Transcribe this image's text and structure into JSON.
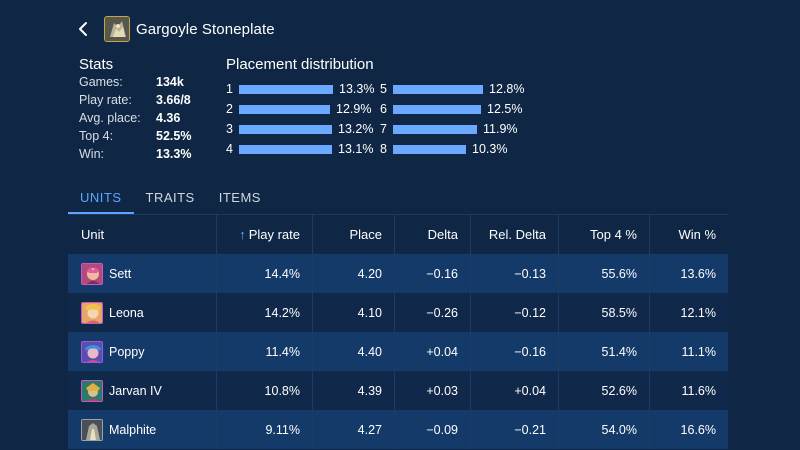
{
  "header": {
    "title": "Gargoyle Stoneplate"
  },
  "stats": {
    "title": "Stats",
    "rows": [
      {
        "label": "Games:",
        "value": "134k"
      },
      {
        "label": "Play rate:",
        "value": "3.66/8"
      },
      {
        "label": "Avg. place:",
        "value": "4.36"
      },
      {
        "label": "Top 4:",
        "value": "52.5%"
      },
      {
        "label": "Win:",
        "value": "13.3%"
      }
    ]
  },
  "placement": {
    "title": "Placement distribution",
    "items": [
      {
        "place": "1",
        "pct": "13.3%",
        "value": 13.3
      },
      {
        "place": "2",
        "pct": "12.9%",
        "value": 12.9
      },
      {
        "place": "3",
        "pct": "13.2%",
        "value": 13.2
      },
      {
        "place": "4",
        "pct": "13.1%",
        "value": 13.1
      },
      {
        "place": "5",
        "pct": "12.8%",
        "value": 12.8
      },
      {
        "place": "6",
        "pct": "12.5%",
        "value": 12.5
      },
      {
        "place": "7",
        "pct": "11.9%",
        "value": 11.9
      },
      {
        "place": "8",
        "pct": "10.3%",
        "value": 10.3
      }
    ]
  },
  "tabs": [
    "UNITS",
    "TRAITS",
    "ITEMS"
  ],
  "active_tab": "UNITS",
  "table": {
    "columns": [
      "Unit",
      "Play rate",
      "Place",
      "Delta",
      "Rel. Delta",
      "Top 4 %",
      "Win %"
    ],
    "rows": [
      {
        "unit": "Sett",
        "play_rate": "14.4%",
        "place": "4.20",
        "delta": "−0.16",
        "rel_delta": "−0.13",
        "top4": "55.6%",
        "win": "13.6%"
      },
      {
        "unit": "Leona",
        "play_rate": "14.2%",
        "place": "4.10",
        "delta": "−0.26",
        "rel_delta": "−0.12",
        "top4": "58.5%",
        "win": "12.1%"
      },
      {
        "unit": "Poppy",
        "play_rate": "11.4%",
        "place": "4.40",
        "delta": "+0.04",
        "rel_delta": "−0.16",
        "top4": "51.4%",
        "win": "11.1%"
      },
      {
        "unit": "Jarvan IV",
        "play_rate": "10.8%",
        "place": "4.39",
        "delta": "+0.03",
        "rel_delta": "+0.04",
        "top4": "52.6%",
        "win": "11.6%"
      },
      {
        "unit": "Malphite",
        "play_rate": "9.11%",
        "place": "4.27",
        "delta": "−0.09",
        "rel_delta": "−0.21",
        "top4": "54.0%",
        "win": "16.6%"
      }
    ]
  },
  "colors": {
    "background": "#0f2744",
    "accent": "#5ea5ff",
    "bar": "#6aa9ff",
    "row_even": "#143a69",
    "row_odd": "#10284a"
  }
}
